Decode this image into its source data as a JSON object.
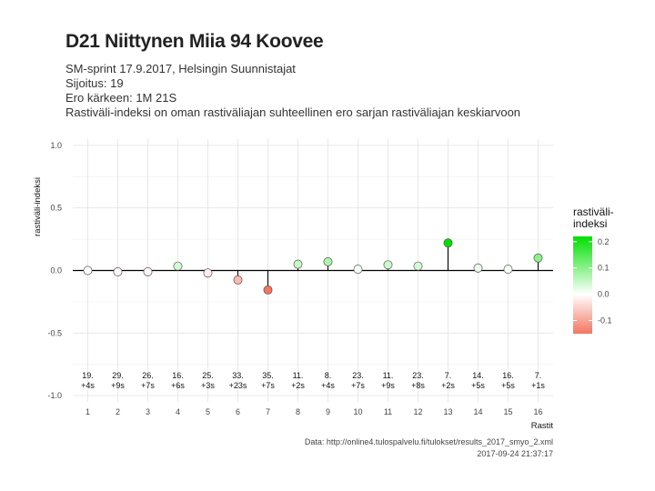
{
  "title": "D21 Niittynen Miia 94 Koovee",
  "subtitle_lines": [
    "SM-sprint 17.9.2017, Helsingin Suunnistajat",
    "Sijoitus: 19",
    "Ero kärkeen: 1M 21S",
    "Rastiväli-indeksi on oman rastiväliajan suhteellinen ero sarjan rastiväliajan keskiarvoon"
  ],
  "caption_lines": [
    "Data: http://online4.tulospalvelu.fi/tulokset/results_2017_smyo_2.xml",
    "2017-09-24 21:37:17"
  ],
  "colors": {
    "low": "#F47560",
    "mid": "#ffffff",
    "high": "#00E000",
    "stem": "#000000",
    "grid": "#e3e3e3"
  },
  "chart_data": {
    "type": "lollipop",
    "xlabel": "Rastit",
    "ylabel": "rastiväli-indeksi",
    "ylim": [
      -1.05,
      1.05
    ],
    "yticks": [
      -1.0,
      -0.5,
      0.0,
      0.5,
      1.0
    ],
    "ytick_labels": [
      "-1.0",
      "-0.5",
      "0.0",
      "0.5",
      "1.0"
    ],
    "x": [
      1,
      2,
      3,
      4,
      5,
      6,
      7,
      8,
      9,
      10,
      11,
      12,
      13,
      14,
      15,
      16
    ],
    "values": [
      0.0,
      -0.01,
      -0.01,
      0.035,
      -0.02,
      -0.075,
      -0.155,
      0.05,
      0.07,
      0.01,
      0.045,
      0.035,
      0.22,
      0.02,
      0.01,
      0.1
    ],
    "rank_labels": [
      "19.",
      "29.",
      "26.",
      "16.",
      "25.",
      "33.",
      "35.",
      "11.",
      "8.",
      "23.",
      "11.",
      "23.",
      "7.",
      "14.",
      "16.",
      "7."
    ],
    "diff_labels": [
      "+4s",
      "+9s",
      "+7s",
      "+6s",
      "+3s",
      "+23s",
      "+7s",
      "+2s",
      "+4s",
      "+7s",
      "+9s",
      "+8s",
      "+2s",
      "+5s",
      "+5s",
      "+1s"
    ],
    "legend": {
      "title_lines": [
        "rastiväli-",
        "indeksi"
      ],
      "range": [
        -0.15,
        0.22
      ],
      "ticks": [
        -0.1,
        0.0,
        0.1,
        0.2
      ],
      "tick_labels": [
        "-0.1",
        "0.0",
        "0.1",
        "0.2"
      ],
      "position": "right"
    },
    "grid": true
  }
}
